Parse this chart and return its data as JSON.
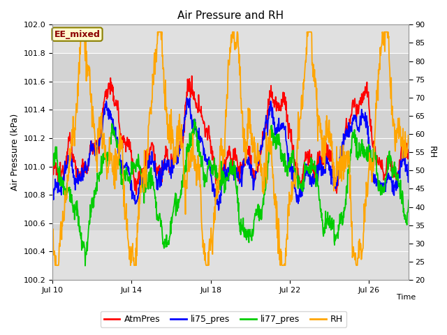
{
  "title": "Air Pressure and RH",
  "xlabel": "Time",
  "ylabel_left": "Air Pressure (kPa)",
  "ylabel_right": "RH",
  "ylim_left": [
    100.2,
    102.0
  ],
  "ylim_right": [
    20,
    90
  ],
  "yticks_left": [
    100.2,
    100.4,
    100.6,
    100.8,
    101.0,
    101.2,
    101.4,
    101.6,
    101.8,
    102.0
  ],
  "yticks_right": [
    20,
    25,
    30,
    35,
    40,
    45,
    50,
    55,
    60,
    65,
    70,
    75,
    80,
    85,
    90
  ],
  "xstart_day": 10,
  "xend_day": 28,
  "xtick_days": [
    10,
    14,
    18,
    22,
    26
  ],
  "xtick_labels": [
    "Jul 10",
    "Jul 14",
    "Jul 18",
    "Jul 22",
    "Jul 26"
  ],
  "annotation_text": "EE_mixed",
  "annotation_color": "#8B0000",
  "annotation_bg": "#FFFACD",
  "annotation_border": "#8B8000",
  "colors": {
    "AtmPres": "#FF0000",
    "li75_pres": "#0000FF",
    "li77_pres": "#00CC00",
    "RH": "#FFA500"
  },
  "legend_labels": [
    "AtmPres",
    "li75_pres",
    "li77_pres",
    "RH"
  ],
  "background_color": "#FFFFFF",
  "plot_bg_outer": "#E0E0E0",
  "plot_bg_inner": "#D3D3D3",
  "grid_color": "#FFFFFF",
  "inner_band_lo": 100.55,
  "inner_band_hi": 101.8,
  "seed": 12345,
  "n_points": 1000
}
